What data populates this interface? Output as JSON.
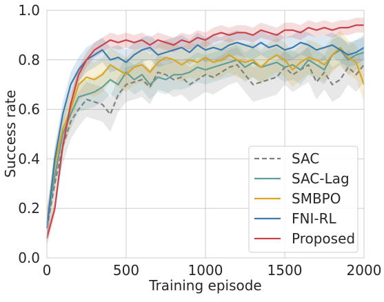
{
  "chart_data": {
    "type": "line",
    "title": "",
    "xlabel": "Training episode",
    "ylabel": "Success rate",
    "xlim": [
      0,
      2000
    ],
    "ylim": [
      0.0,
      1.0
    ],
    "x_ticks": [
      "0",
      "500",
      "1000",
      "1500",
      "2000"
    ],
    "y_ticks": [
      "0.0",
      "0.2",
      "0.4",
      "0.6",
      "0.8",
      "1.0"
    ],
    "grid": true,
    "legend_position": "bottom-right",
    "series": [
      {
        "name": "SAC",
        "color": "#7f7f7f",
        "dash": true,
        "x": [
          0,
          50,
          100,
          150,
          200,
          250,
          300,
          350,
          400,
          450,
          500,
          550,
          600,
          650,
          700,
          750,
          800,
          850,
          900,
          950,
          1000,
          1050,
          1100,
          1150,
          1200,
          1250,
          1300,
          1350,
          1400,
          1450,
          1500,
          1550,
          1600,
          1650,
          1700,
          1750,
          1800,
          1850,
          1900,
          1950,
          2000
        ],
        "values": [
          0.12,
          0.3,
          0.45,
          0.55,
          0.6,
          0.64,
          0.63,
          0.62,
          0.58,
          0.66,
          0.7,
          0.71,
          0.72,
          0.69,
          0.75,
          0.74,
          0.72,
          0.73,
          0.7,
          0.72,
          0.74,
          0.73,
          0.75,
          0.77,
          0.78,
          0.74,
          0.7,
          0.71,
          0.72,
          0.73,
          0.77,
          0.74,
          0.76,
          0.78,
          0.71,
          0.75,
          0.7,
          0.72,
          0.77,
          0.74,
          0.78
        ],
        "band": 0.07
      },
      {
        "name": "SAC-Lag",
        "color": "#5f9e9b",
        "dash": false,
        "x": [
          0,
          50,
          100,
          150,
          200,
          250,
          300,
          350,
          400,
          450,
          500,
          550,
          600,
          650,
          700,
          750,
          800,
          850,
          900,
          950,
          1000,
          1050,
          1100,
          1150,
          1200,
          1250,
          1300,
          1350,
          1400,
          1450,
          1500,
          1550,
          1600,
          1650,
          1700,
          1750,
          1800,
          1850,
          1900,
          1950,
          2000
        ],
        "values": [
          0.14,
          0.33,
          0.5,
          0.58,
          0.65,
          0.66,
          0.67,
          0.69,
          0.72,
          0.7,
          0.75,
          0.72,
          0.74,
          0.7,
          0.73,
          0.72,
          0.74,
          0.74,
          0.75,
          0.77,
          0.76,
          0.77,
          0.78,
          0.79,
          0.8,
          0.77,
          0.79,
          0.77,
          0.78,
          0.79,
          0.77,
          0.78,
          0.76,
          0.8,
          0.78,
          0.76,
          0.82,
          0.84,
          0.8,
          0.82,
          0.83
        ],
        "band": 0.06
      },
      {
        "name": "SMBPO",
        "color": "#daa520",
        "dash": false,
        "x": [
          0,
          50,
          100,
          150,
          200,
          250,
          300,
          350,
          400,
          450,
          500,
          550,
          600,
          650,
          700,
          750,
          800,
          850,
          900,
          950,
          1000,
          1050,
          1100,
          1150,
          1200,
          1250,
          1300,
          1350,
          1400,
          1450,
          1500,
          1550,
          1600,
          1650,
          1700,
          1750,
          1800,
          1850,
          1900,
          1950,
          2000
        ],
        "values": [
          0.13,
          0.38,
          0.52,
          0.6,
          0.7,
          0.73,
          0.72,
          0.74,
          0.78,
          0.76,
          0.74,
          0.77,
          0.78,
          0.75,
          0.79,
          0.81,
          0.8,
          0.78,
          0.8,
          0.79,
          0.81,
          0.79,
          0.8,
          0.82,
          0.8,
          0.79,
          0.8,
          0.77,
          0.8,
          0.82,
          0.8,
          0.76,
          0.79,
          0.81,
          0.8,
          0.78,
          0.82,
          0.85,
          0.81,
          0.79,
          0.7
        ],
        "band": 0.07
      },
      {
        "name": "FNI-RL",
        "color": "#3a7ab0",
        "dash": false,
        "x": [
          0,
          50,
          100,
          150,
          200,
          250,
          300,
          350,
          400,
          450,
          500,
          550,
          600,
          650,
          700,
          750,
          800,
          850,
          900,
          950,
          1000,
          1050,
          1100,
          1150,
          1200,
          1250,
          1300,
          1350,
          1400,
          1450,
          1500,
          1550,
          1600,
          1650,
          1700,
          1750,
          1800,
          1850,
          1900,
          1950,
          2000
        ],
        "values": [
          0.12,
          0.4,
          0.58,
          0.7,
          0.76,
          0.8,
          0.82,
          0.84,
          0.8,
          0.81,
          0.79,
          0.82,
          0.84,
          0.85,
          0.82,
          0.83,
          0.84,
          0.85,
          0.83,
          0.86,
          0.84,
          0.85,
          0.84,
          0.86,
          0.87,
          0.86,
          0.85,
          0.87,
          0.85,
          0.86,
          0.84,
          0.85,
          0.87,
          0.86,
          0.84,
          0.85,
          0.86,
          0.84,
          0.82,
          0.83,
          0.85
        ],
        "band": 0.05
      },
      {
        "name": "Proposed",
        "color": "#c8444a",
        "dash": false,
        "x": [
          0,
          50,
          100,
          150,
          200,
          250,
          300,
          350,
          400,
          450,
          500,
          550,
          600,
          650,
          700,
          750,
          800,
          850,
          900,
          950,
          1000,
          1050,
          1100,
          1150,
          1200,
          1250,
          1300,
          1350,
          1400,
          1450,
          1500,
          1550,
          1600,
          1650,
          1700,
          1750,
          1800,
          1850,
          1900,
          1950,
          2000
        ],
        "values": [
          0.08,
          0.2,
          0.45,
          0.62,
          0.74,
          0.8,
          0.84,
          0.86,
          0.88,
          0.87,
          0.88,
          0.87,
          0.88,
          0.86,
          0.88,
          0.87,
          0.86,
          0.88,
          0.87,
          0.89,
          0.88,
          0.9,
          0.91,
          0.9,
          0.91,
          0.91,
          0.9,
          0.92,
          0.91,
          0.9,
          0.92,
          0.92,
          0.91,
          0.93,
          0.92,
          0.93,
          0.92,
          0.93,
          0.93,
          0.94,
          0.94
        ],
        "band": 0.03
      }
    ]
  }
}
